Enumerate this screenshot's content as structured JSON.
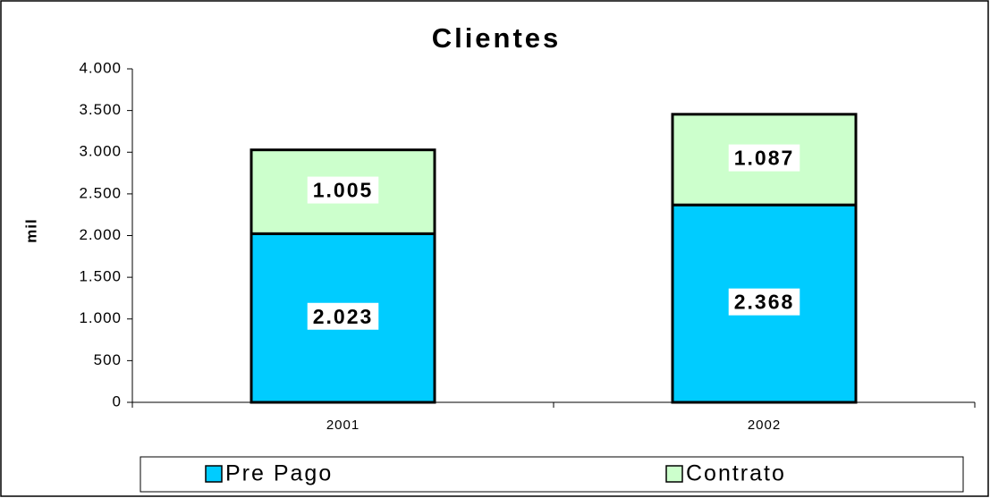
{
  "chart_data": {
    "type": "bar",
    "stacked": true,
    "title": "Clientes",
    "y_label": "mil",
    "categories": [
      "2001",
      "2002"
    ],
    "series": [
      {
        "name": "Pre Pago",
        "color": "#00ccff",
        "values": [
          2023,
          2368
        ],
        "value_labels": [
          "2.023",
          "2.368"
        ]
      },
      {
        "name": "Contrato",
        "color": "#ccffcc",
        "values": [
          1005,
          1087
        ],
        "value_labels": [
          "1.005",
          "1.087"
        ]
      }
    ],
    "ylim": [
      0,
      4000
    ],
    "yticks": [
      0,
      {
        "value": 500,
        "label": "500"
      },
      {
        "value": 1000,
        "label": "1.000"
      },
      {
        "value": 1500,
        "label": "1.500"
      },
      {
        "value": 2000,
        "label": "2.000"
      },
      {
        "value": 2500,
        "label": "2.500"
      },
      {
        "value": 3000,
        "label": "3.000"
      },
      {
        "value": 3500,
        "label": "3.500"
      },
      {
        "value": 4000,
        "label": "4.000"
      }
    ],
    "legend": "bottom"
  }
}
